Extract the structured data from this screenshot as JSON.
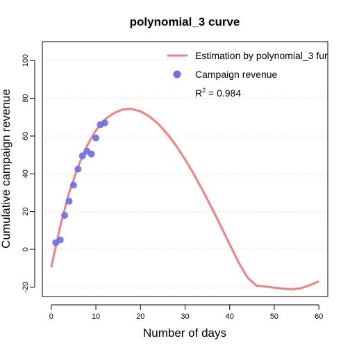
{
  "chart_data": {
    "type": "scatter",
    "title": "polynomial_3 curve",
    "xlabel": "Number of days",
    "ylabel": "Cumulative campaign revenue",
    "xlim": [
      -2,
      62
    ],
    "ylim": [
      -25,
      110
    ],
    "x_ticks": [
      0,
      10,
      20,
      30,
      40,
      50,
      60
    ],
    "y_ticks": [
      -20,
      0,
      20,
      40,
      60,
      80,
      100
    ],
    "grid": "horizontal dotted",
    "legend_position": "top-right",
    "series": [
      {
        "name": "Estimation by polynomial_3 fur",
        "type": "line",
        "color": "#f87e7e",
        "x": [
          0,
          2,
          4,
          6,
          8,
          10,
          12,
          14,
          16,
          18,
          20,
          22,
          24,
          26,
          28,
          30,
          32,
          34,
          36,
          38,
          40,
          42,
          44,
          46,
          48,
          50,
          52,
          54,
          56,
          58,
          60
        ],
        "y": [
          -9.6,
          12.2,
          29.9,
          43.8,
          54.8,
          63.0,
          68.7,
          72.1,
          74.1,
          74.4,
          73.1,
          70.4,
          66.4,
          61.2,
          54.9,
          47.7,
          39.7,
          31.0,
          21.9,
          12.4,
          2.7,
          -6.9,
          -15.0,
          -19.2,
          -19.7,
          -20.3,
          -20.8,
          -21.2,
          -20.6,
          -19.0,
          -17.0
        ]
      },
      {
        "name": "Campaign revenue",
        "type": "scatter",
        "color": "#6c6ced",
        "x": [
          1,
          2,
          3,
          4,
          5,
          6,
          7,
          8,
          9,
          10,
          11,
          12
        ],
        "y": [
          3.5,
          5,
          18,
          25.5,
          34,
          42.5,
          49.5,
          52,
          50.5,
          59,
          66,
          67
        ]
      }
    ],
    "annotation": {
      "r2_label": "R",
      "r2_sup": "2",
      "r2_value": " = 0.984"
    }
  }
}
